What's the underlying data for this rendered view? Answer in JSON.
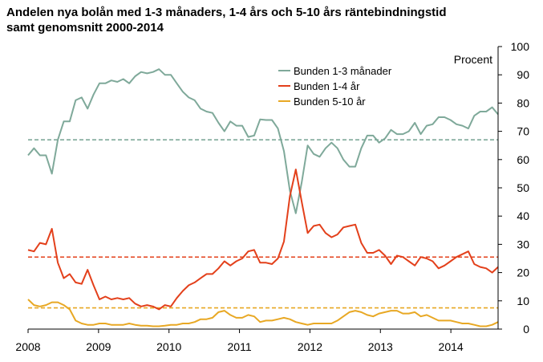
{
  "title_line1": "Andelen nya bolån med 1-3 månaders, 1-4 års och 5-10 års räntebindningstid",
  "title_line2": "samt genomsnitt 2000-2014",
  "chart_data": {
    "type": "line",
    "title": "Andelen nya bolån med 1-3 månaders, 1-4 års och 5-10 års räntebindningstid samt genomsnitt 2000-2014",
    "ylabel": "Procent",
    "ylim": [
      0,
      100
    ],
    "xlim": [
      2008,
      2014.67
    ],
    "y_ticks": [
      "0",
      "10",
      "20",
      "30",
      "40",
      "50",
      "60",
      "70",
      "80",
      "90",
      "100"
    ],
    "x_ticks": [
      "2008",
      "2009",
      "2010",
      "2011",
      "2012",
      "2013",
      "2014"
    ],
    "legend_position": "top-center",
    "series": [
      {
        "name": "Bunden 1-3 månader",
        "color": "#7fa99a",
        "average": 67,
        "values": [
          61.5,
          64,
          61.5,
          61.5,
          55,
          67,
          73.5,
          73.5,
          81,
          82,
          78,
          83,
          87,
          87,
          88,
          87.5,
          88.5,
          87,
          89.5,
          91,
          90.5,
          91,
          92,
          90,
          90,
          87,
          84,
          82,
          81,
          78,
          77,
          76.5,
          73,
          70,
          73.5,
          72,
          72,
          68,
          68.5,
          74.2,
          74,
          74,
          71,
          63,
          49,
          41,
          52,
          65,
          62,
          61,
          64,
          66,
          64,
          60,
          57.5,
          57.5,
          64,
          68.5,
          68.5,
          66,
          67.5,
          70.5,
          69,
          69,
          70,
          73,
          69,
          72,
          72.5,
          75,
          75,
          74,
          72.5,
          72,
          71,
          75.5,
          77,
          77,
          78.5,
          76
        ]
      },
      {
        "name": "Bunden 1-4 år",
        "color": "#e3401b",
        "average": 25.5,
        "values": [
          28,
          27.5,
          30.5,
          30,
          35.5,
          23.5,
          18,
          19.5,
          16.5,
          16,
          21,
          15.5,
          10.5,
          11.5,
          10.5,
          11,
          10.5,
          11,
          9,
          8,
          8.5,
          8,
          7,
          8.5,
          8,
          11,
          13.5,
          15.5,
          16.5,
          18,
          19.5,
          19.5,
          21.5,
          24,
          22.5,
          24,
          25,
          27.5,
          28,
          23.5,
          23.5,
          23,
          25,
          31,
          47,
          56.5,
          45,
          34,
          36.5,
          37,
          34,
          32.5,
          33.5,
          36,
          36.5,
          37,
          30.5,
          27,
          27,
          28,
          26,
          23,
          26,
          25.5,
          24,
          22.5,
          25.5,
          25,
          24,
          21.5,
          22.5,
          24,
          25.5,
          26.5,
          27.5,
          23,
          22,
          21.5,
          20,
          22
        ]
      },
      {
        "name": "Bunden 5-10 år",
        "color": "#e8a824",
        "average": 7.5,
        "values": [
          10.5,
          8.5,
          8,
          8.5,
          9.5,
          9.5,
          8.5,
          7,
          3,
          2,
          1.5,
          1.5,
          2,
          2,
          1.5,
          1.5,
          1.5,
          2,
          1.5,
          1.2,
          1.2,
          1,
          1,
          1.2,
          1.5,
          1.5,
          2,
          2,
          2.5,
          3.5,
          3.5,
          4,
          6,
          6.5,
          5,
          4,
          4,
          5,
          4.5,
          2.5,
          3,
          3,
          3.5,
          4,
          3.5,
          2.5,
          2,
          1.5,
          2,
          2,
          2,
          2,
          3,
          4.5,
          6,
          6.5,
          6,
          5,
          4.5,
          5.5,
          6,
          6.5,
          6.5,
          5.5,
          5.5,
          6,
          4.5,
          5,
          4,
          3,
          3,
          3,
          2.5,
          2,
          2,
          1.5,
          1,
          1,
          1.5,
          2.5
        ]
      }
    ]
  }
}
